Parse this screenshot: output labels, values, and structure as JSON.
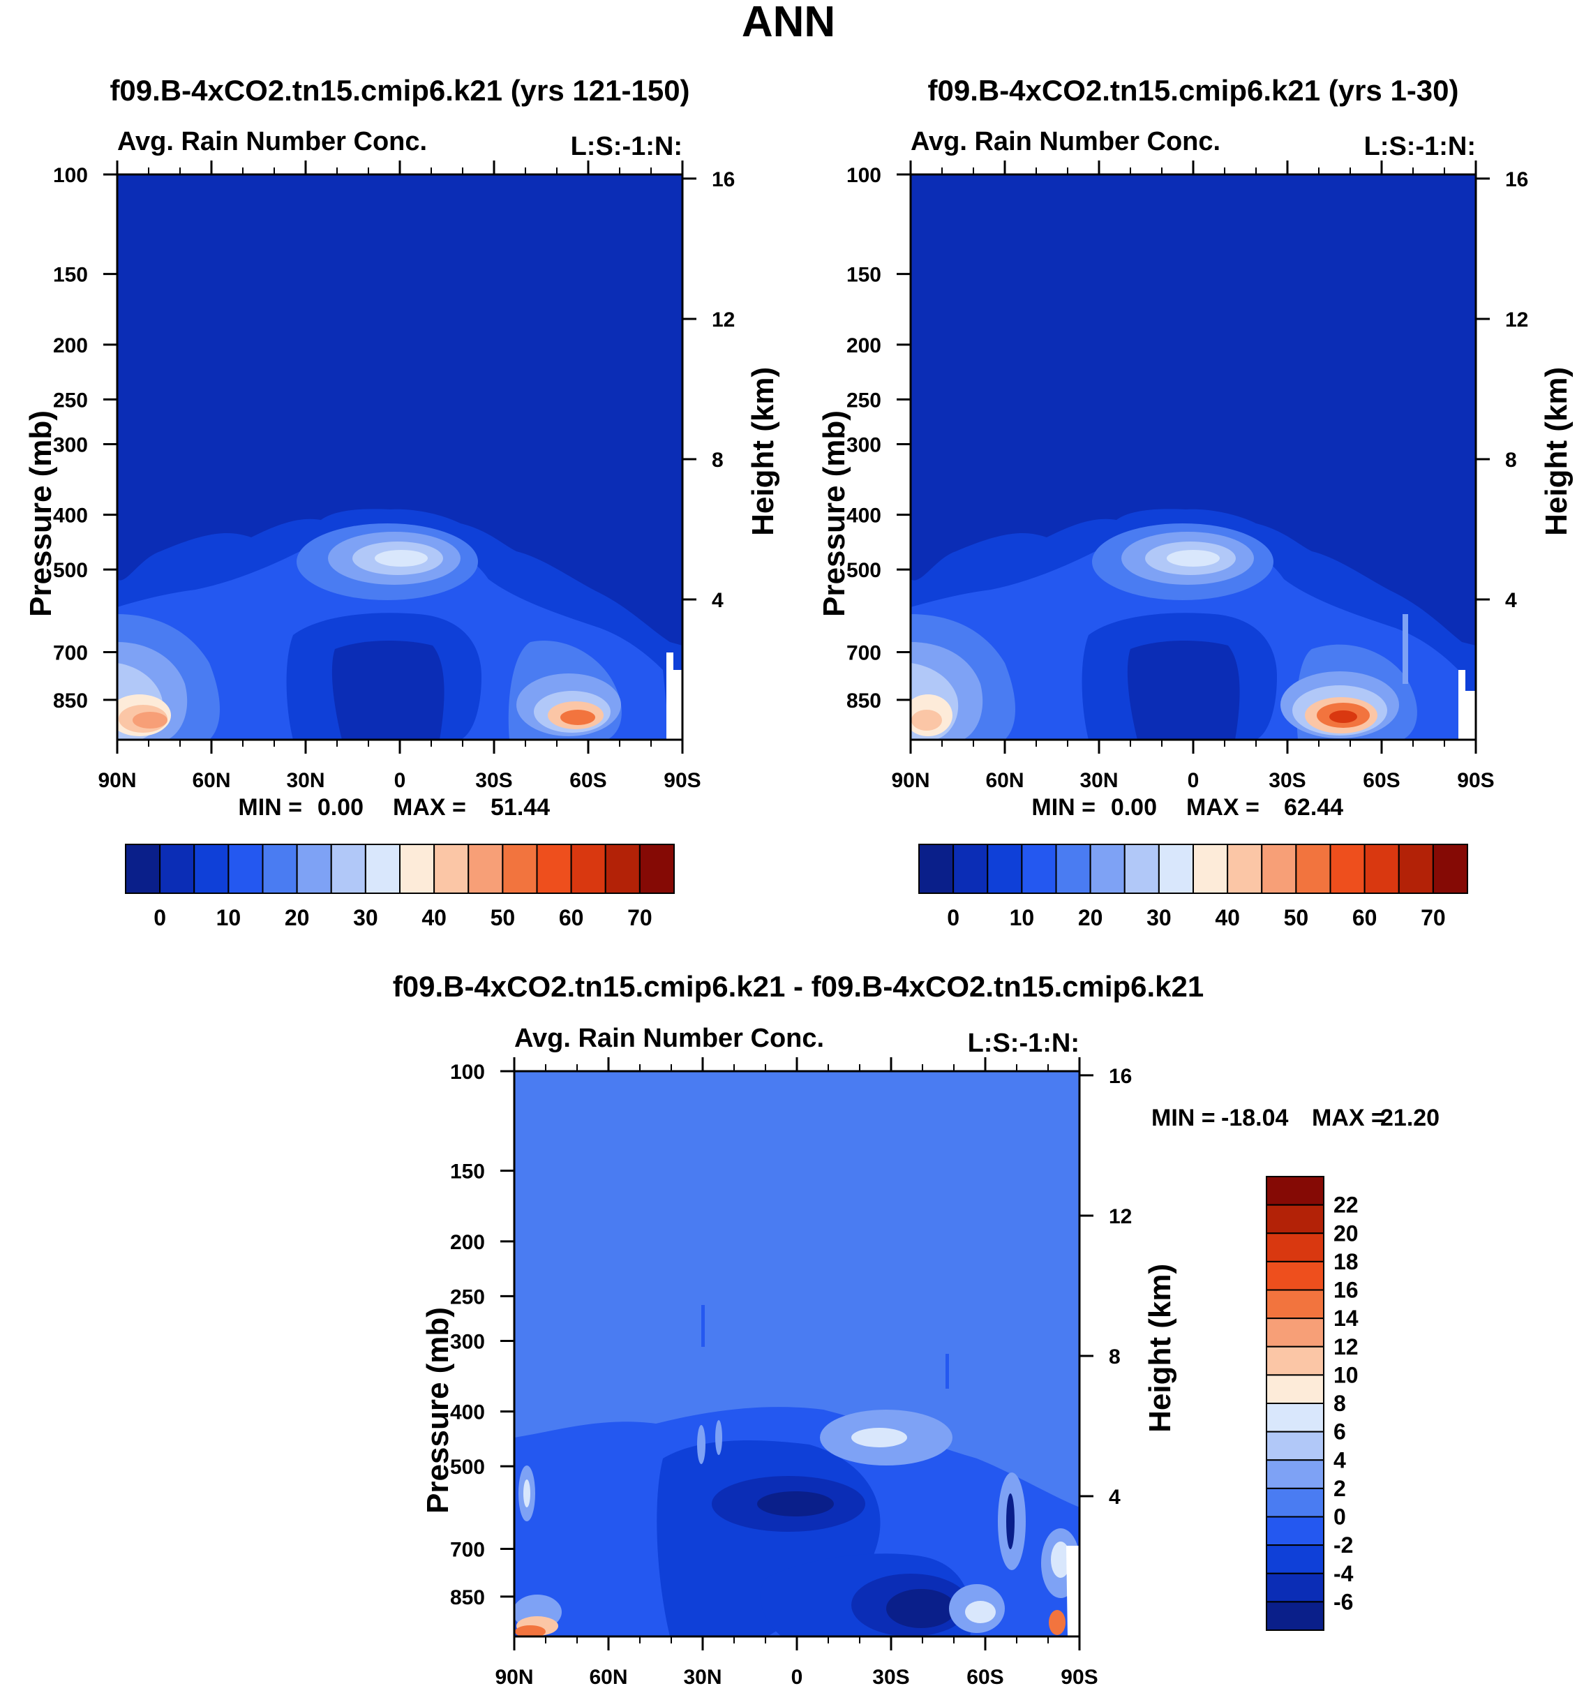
{
  "figure": {
    "title": "ANN"
  },
  "colors": {
    "abs": [
      "#0a1f8a",
      "#0b2db6",
      "#0f40d8",
      "#2458f0",
      "#4a7cf2",
      "#7ea2f5",
      "#b1c8f8",
      "#d9e7fc",
      "#fdebd9",
      "#fbc6a6",
      "#f79f77",
      "#f2743e",
      "#ee4f1d",
      "#d93810",
      "#b32207",
      "#850a05"
    ],
    "diff": [
      "#0a1f8a",
      "#0b2db6",
      "#0f40d8",
      "#2458f0",
      "#4a7cf2",
      "#7ea2f5",
      "#b1c8f8",
      "#d9e7fc",
      "#fdebd9",
      "#fbc6a6",
      "#f79f77",
      "#f2743e",
      "#ee4f1d",
      "#d93810",
      "#b32207",
      "#850a05"
    ]
  },
  "chart_data": [
    {
      "type": "heatmap",
      "id": "panel-left",
      "title": "f09.B-4xCO2.tn15.cmip6.k21 (yrs 121-150)",
      "subtitle_left": "Avg. Rain Number Conc.",
      "subtitle_right": "L:S:-1:N:",
      "xlabel": "",
      "ylabel": "Pressure (mb)",
      "ylabel_right": "Height (km)",
      "x_ticks": [
        "90N",
        "60N",
        "30N",
        "0",
        "30S",
        "60S",
        "90S"
      ],
      "y_ticks": [
        "100",
        "150",
        "200",
        "250",
        "300",
        "400",
        "500",
        "700",
        "850"
      ],
      "y_ticks_right": [
        "16",
        "12",
        "8",
        "4"
      ],
      "stats": {
        "min_label": "MIN =",
        "min": "0.00",
        "max_label": "MAX =",
        "max": "51.44"
      },
      "colorbar": {
        "orientation": "horizontal",
        "labels": [
          "0",
          "10",
          "20",
          "30",
          "40",
          "50",
          "60",
          "70"
        ]
      }
    },
    {
      "type": "heatmap",
      "id": "panel-right",
      "title": "f09.B-4xCO2.tn15.cmip6.k21 (yrs 1-30)",
      "subtitle_left": "Avg. Rain Number Conc.",
      "subtitle_right": "L:S:-1:N:",
      "xlabel": "",
      "ylabel": "Pressure (mb)",
      "ylabel_right": "Height (km)",
      "x_ticks": [
        "90N",
        "60N",
        "30N",
        "0",
        "30S",
        "60S",
        "90S"
      ],
      "y_ticks": [
        "100",
        "150",
        "200",
        "250",
        "300",
        "400",
        "500",
        "700",
        "850"
      ],
      "y_ticks_right": [
        "16",
        "12",
        "8",
        "4"
      ],
      "stats": {
        "min_label": "MIN =",
        "min": "0.00",
        "max_label": "MAX =",
        "max": "62.44"
      },
      "colorbar": {
        "orientation": "horizontal",
        "labels": [
          "0",
          "10",
          "20",
          "30",
          "40",
          "50",
          "60",
          "70"
        ]
      }
    },
    {
      "type": "heatmap",
      "id": "panel-diff",
      "title": "f09.B-4xCO2.tn15.cmip6.k21 - f09.B-4xCO2.tn15.cmip6.k21",
      "subtitle_left": "Avg. Rain Number Conc.",
      "subtitle_right": "L:S:-1:N:",
      "xlabel": "",
      "ylabel": "Pressure (mb)",
      "ylabel_right": "Height (km)",
      "x_ticks": [
        "90N",
        "60N",
        "30N",
        "0",
        "30S",
        "60S",
        "90S"
      ],
      "y_ticks": [
        "100",
        "150",
        "200",
        "250",
        "300",
        "400",
        "500",
        "700",
        "850"
      ],
      "y_ticks_right": [
        "16",
        "12",
        "8",
        "4"
      ],
      "stats": {
        "min_label": "MIN =",
        "min": "-18.04",
        "max_label": "MAX =",
        "max": "21.20"
      },
      "colorbar": {
        "orientation": "vertical",
        "labels": [
          "22",
          "20",
          "18",
          "16",
          "14",
          "12",
          "10",
          "8",
          "6",
          "4",
          "2",
          "0",
          "-2",
          "-4",
          "-6"
        ]
      }
    }
  ]
}
